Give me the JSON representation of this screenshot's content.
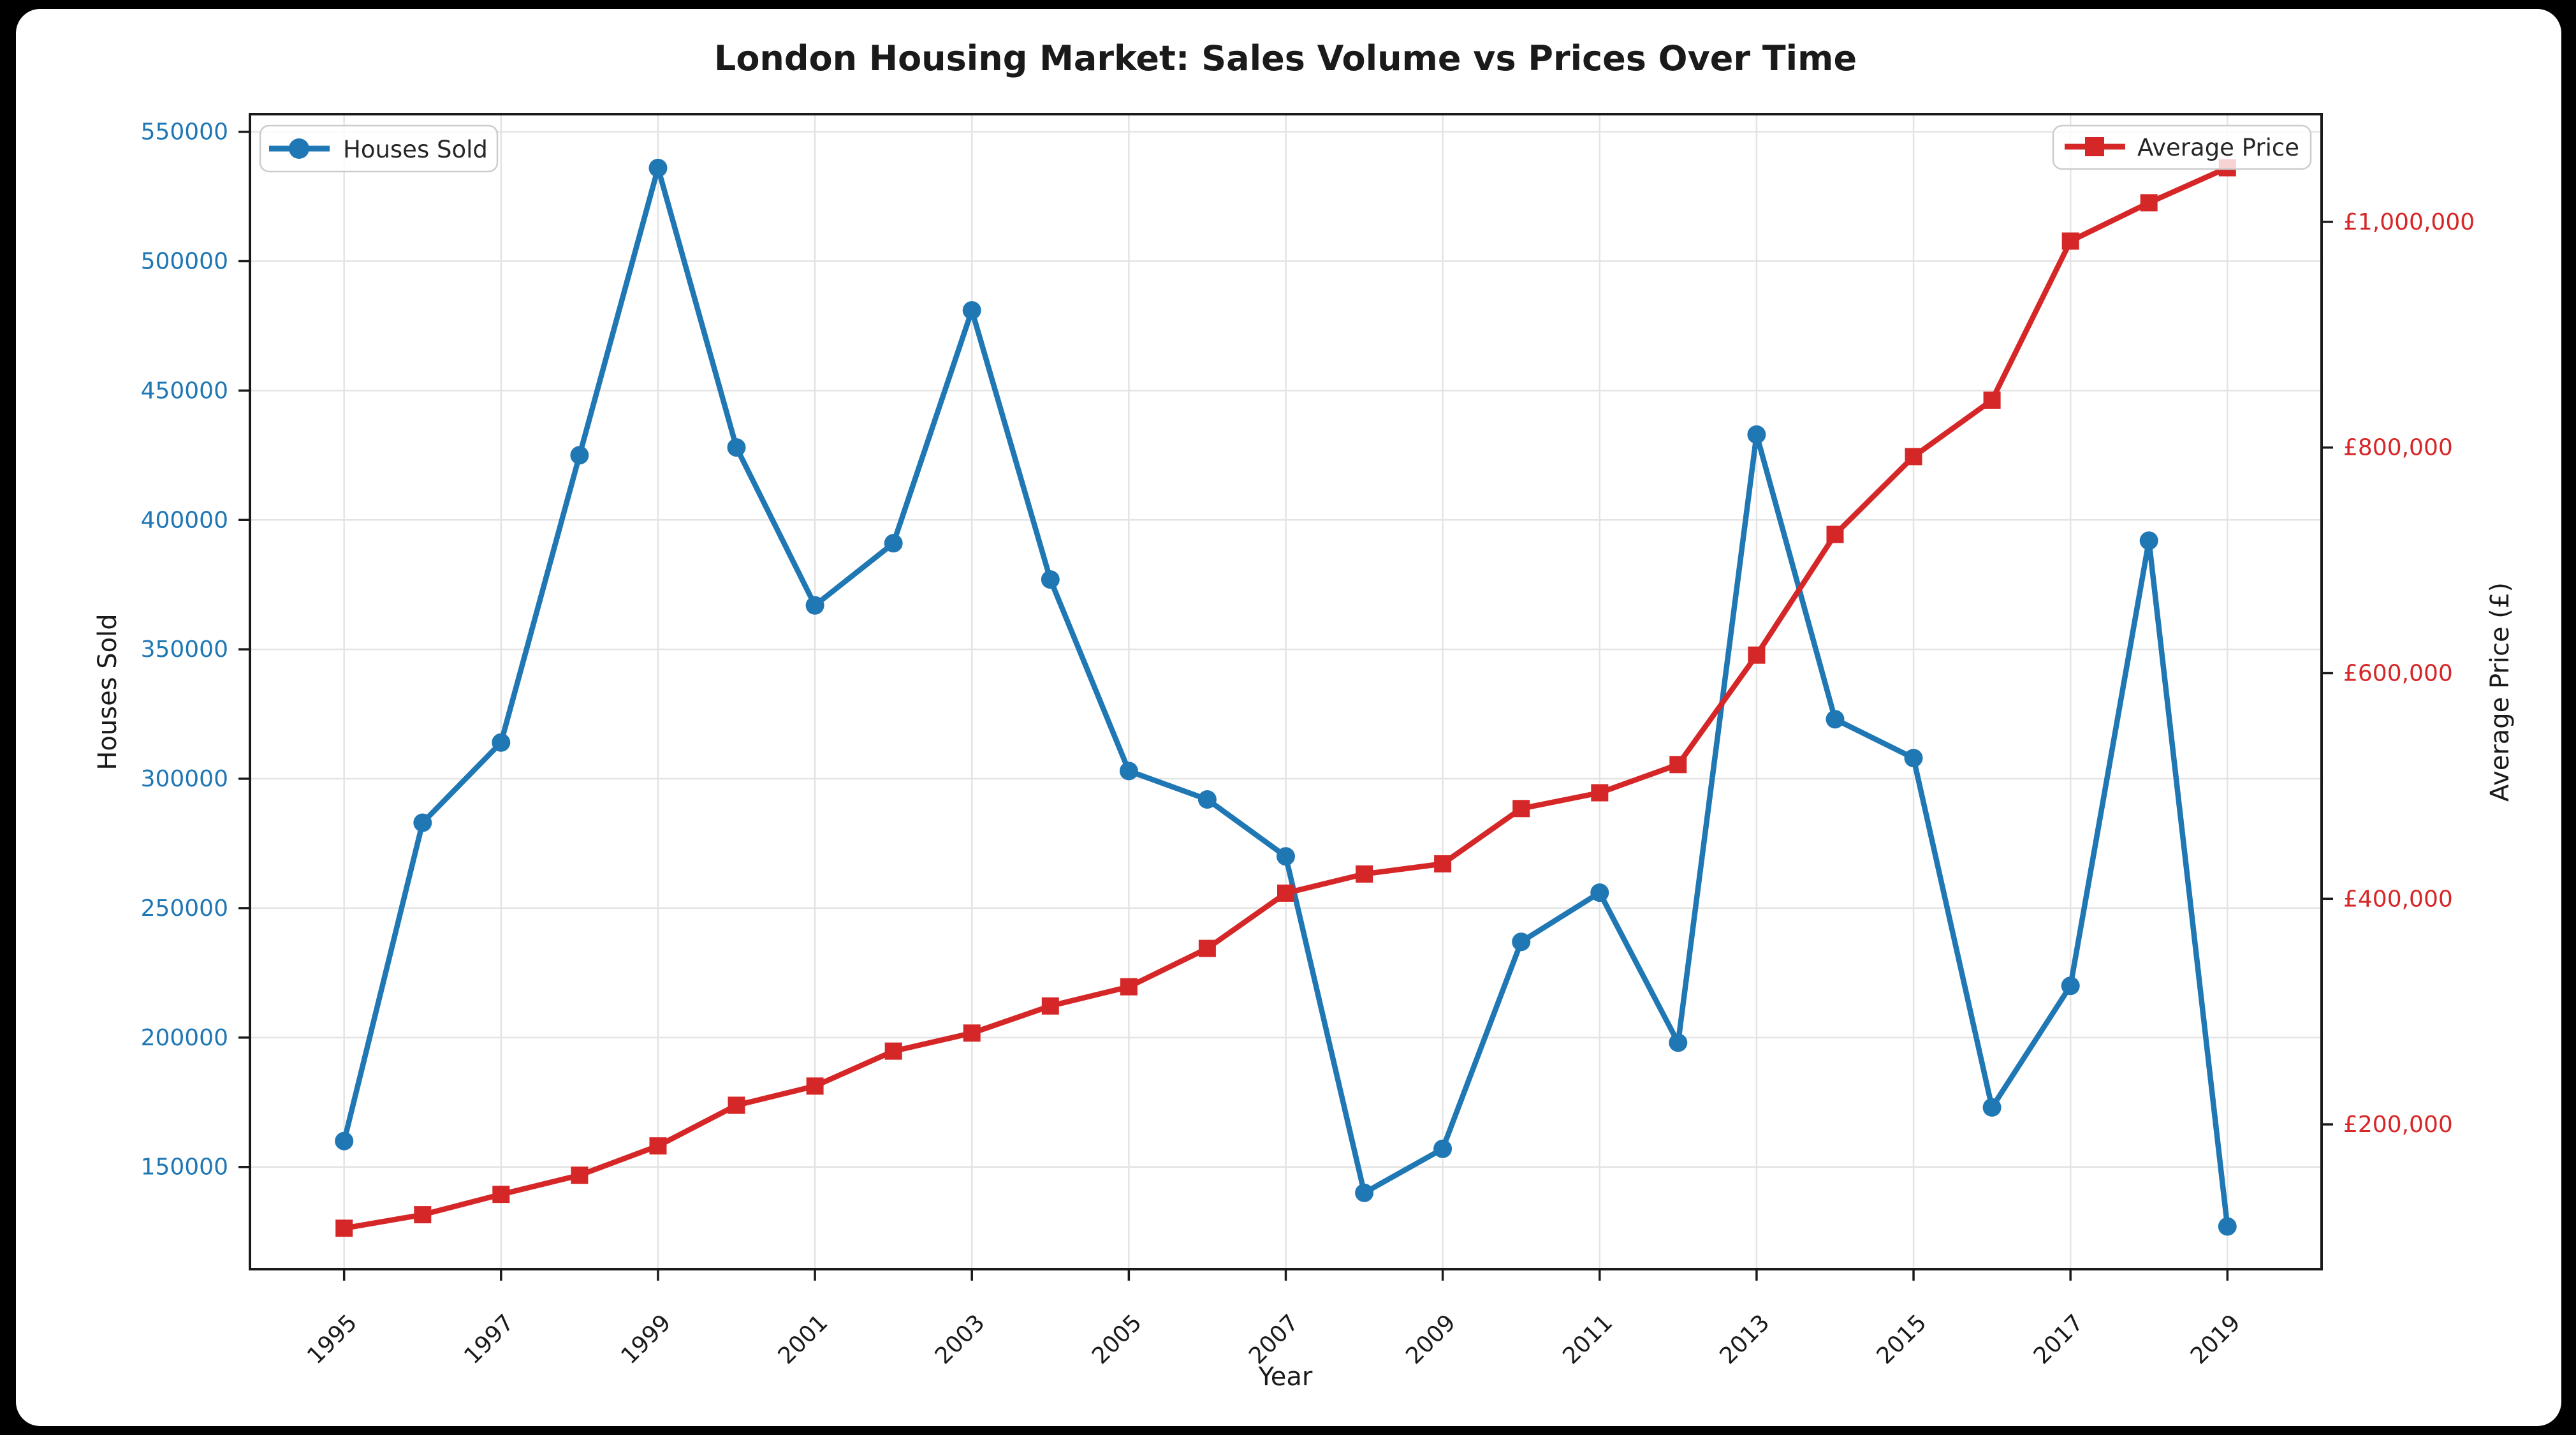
{
  "window": {
    "background": "#000000",
    "figure_background": "#ffffff"
  },
  "chart_data": {
    "type": "line",
    "title": "London Housing Market: Sales Volume vs Prices Over Time",
    "xlabel": "Year",
    "grid": true,
    "legend_positions": [
      "upper-left",
      "upper-right"
    ],
    "x": [
      1995,
      1996,
      1997,
      1998,
      1999,
      2000,
      2001,
      2002,
      2003,
      2004,
      2005,
      2006,
      2007,
      2008,
      2009,
      2010,
      2011,
      2012,
      2013,
      2014,
      2015,
      2016,
      2017,
      2018,
      2019
    ],
    "x_ticks": [
      1995,
      1997,
      1999,
      2001,
      2003,
      2005,
      2007,
      2009,
      2011,
      2013,
      2015,
      2017,
      2019
    ],
    "x_tick_labels": [
      "1995",
      "1997",
      "1999",
      "2001",
      "2003",
      "2005",
      "2007",
      "2009",
      "2011",
      "2013",
      "2015",
      "2017",
      "2019"
    ],
    "xlim": [
      1993.8,
      2020.2
    ],
    "left_axis": {
      "label": "Houses Sold",
      "color": "#1f77b4",
      "ticks": [
        150000,
        200000,
        250000,
        300000,
        350000,
        400000,
        450000,
        500000,
        550000
      ],
      "tick_labels": [
        "150000",
        "200000",
        "250000",
        "300000",
        "350000",
        "400000",
        "450000",
        "500000",
        "550000"
      ],
      "lim": [
        110500,
        556800
      ]
    },
    "right_axis": {
      "label": "Average Price (£)",
      "color": "#d62728",
      "ticks": [
        200000,
        400000,
        600000,
        800000,
        1000000
      ],
      "tick_labels": [
        "£200,000",
        "£400,000",
        "£600,000",
        "£800,000",
        "£1,000,000"
      ],
      "lim": [
        71700,
        1095500
      ]
    },
    "series": [
      {
        "name": "Houses Sold",
        "axis": "left",
        "color": "#1f77b4",
        "marker": "circle",
        "values": [
          160000,
          283000,
          314000,
          425000,
          536000,
          428000,
          367000,
          391000,
          481000,
          377000,
          303000,
          292000,
          270000,
          140000,
          157000,
          237000,
          256000,
          198000,
          433000,
          323000,
          308000,
          173000,
          220000,
          392000,
          127000
        ]
      },
      {
        "name": "Average Price",
        "axis": "right",
        "color": "#d62728",
        "marker": "square",
        "values": [
          108000,
          120000,
          138000,
          155000,
          181000,
          217000,
          234000,
          265000,
          281000,
          305000,
          322000,
          356000,
          405000,
          422000,
          431000,
          480000,
          494000,
          519000,
          616000,
          723000,
          792000,
          842000,
          983000,
          1017000,
          1048000
        ]
      }
    ],
    "style": {
      "grid_color": "#e4e4e4",
      "spine_color": "#1a1a1a",
      "tick_color": "#1a1a1a",
      "legend_border_color": "#cccccc"
    }
  }
}
